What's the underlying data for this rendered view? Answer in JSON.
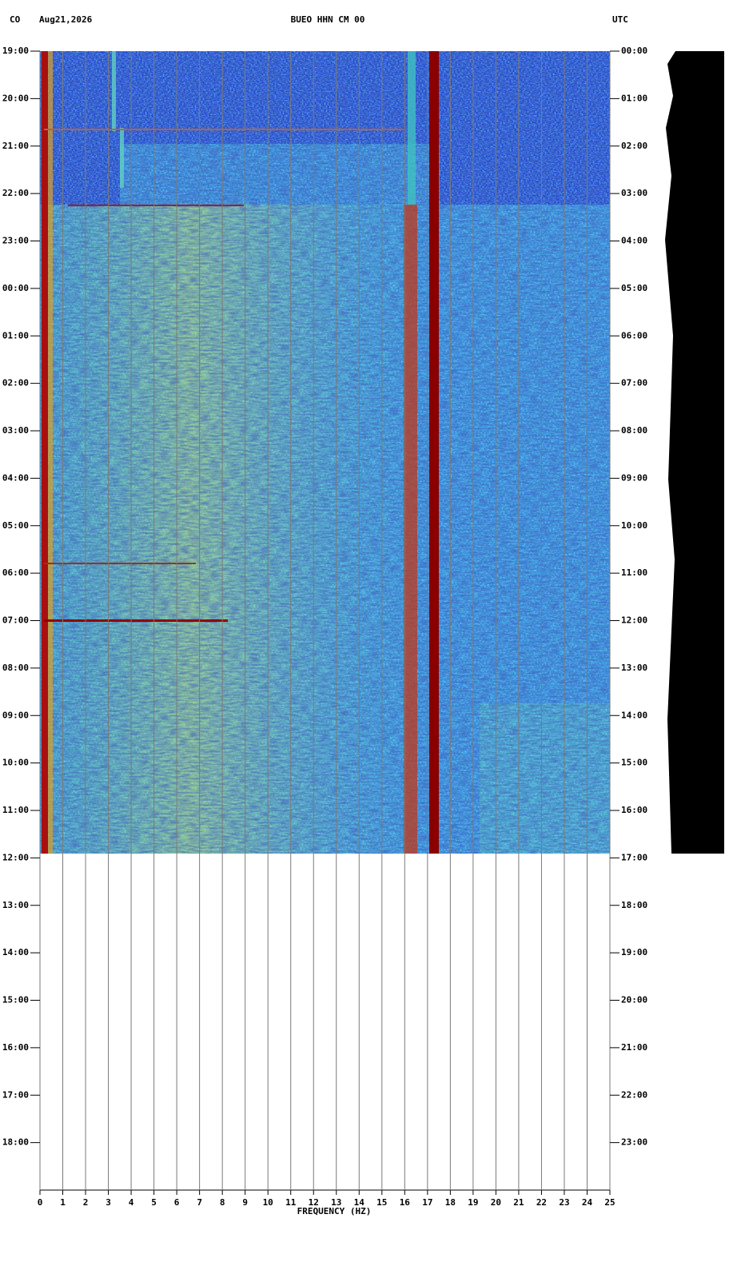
{
  "header": {
    "network": "CO",
    "date": "Aug21,2026",
    "station": "BUEO HHN CM 00",
    "timezone": "UTC"
  },
  "chart_data": {
    "type": "spectrogram",
    "xlabel": "FREQUENCY (HZ)",
    "xlim": [
      0,
      25
    ],
    "xticks": [
      0,
      1,
      2,
      3,
      4,
      5,
      6,
      7,
      8,
      9,
      10,
      11,
      12,
      13,
      14,
      15,
      16,
      17,
      18,
      19,
      20,
      21,
      22,
      23,
      24,
      25
    ],
    "ylim": [
      0,
      24
    ],
    "yticks": [
      {
        "value": 0,
        "label": "19:00"
      },
      {
        "value": 1,
        "label": "20:00"
      },
      {
        "value": 2,
        "label": "21:00"
      },
      {
        "value": 3,
        "label": "22:00"
      },
      {
        "value": 4,
        "label": "23:00"
      },
      {
        "value": 5,
        "label": "00:00"
      },
      {
        "value": 6,
        "label": "01:00"
      },
      {
        "value": 7,
        "label": "02:00"
      },
      {
        "value": 8,
        "label": "03:00"
      },
      {
        "value": 9,
        "label": "04:00"
      },
      {
        "value": 10,
        "label": "05:00"
      },
      {
        "value": 11,
        "label": "06:00"
      },
      {
        "value": 12,
        "label": "07:00"
      },
      {
        "value": 13,
        "label": "08:00"
      },
      {
        "value": 14,
        "label": "09:00"
      },
      {
        "value": 15,
        "label": "10:00"
      },
      {
        "value": 16,
        "label": "11:00"
      },
      {
        "value": 17,
        "label": "12:00"
      },
      {
        "value": 18,
        "label": "13:00"
      },
      {
        "value": 19,
        "label": "14:00"
      },
      {
        "value": 20,
        "label": "15:00"
      },
      {
        "value": 21,
        "label": "16:00"
      },
      {
        "value": 22,
        "label": "17:00"
      },
      {
        "value": 23,
        "label": "18:00"
      }
    ],
    "y2ticks": [
      {
        "value": 0,
        "label": "00:00"
      },
      {
        "value": 1,
        "label": "01:00"
      },
      {
        "value": 2,
        "label": "02:00"
      },
      {
        "value": 3,
        "label": "03:00"
      },
      {
        "value": 4,
        "label": "04:00"
      },
      {
        "value": 5,
        "label": "05:00"
      },
      {
        "value": 6,
        "label": "06:00"
      },
      {
        "value": 7,
        "label": "07:00"
      },
      {
        "value": 8,
        "label": "08:00"
      },
      {
        "value": 9,
        "label": "09:00"
      },
      {
        "value": 10,
        "label": "10:00"
      },
      {
        "value": 11,
        "label": "11:00"
      },
      {
        "value": 12,
        "label": "12:00"
      },
      {
        "value": 13,
        "label": "13:00"
      },
      {
        "value": 14,
        "label": "14:00"
      },
      {
        "value": 15,
        "label": "15:00"
      },
      {
        "value": 16,
        "label": "16:00"
      },
      {
        "value": 17,
        "label": "17:00"
      },
      {
        "value": 18,
        "label": "18:00"
      },
      {
        "value": 19,
        "label": "19:00"
      },
      {
        "value": 20,
        "label": "20:00"
      },
      {
        "value": 21,
        "label": "21:00"
      },
      {
        "value": 22,
        "label": "22:00"
      },
      {
        "value": 23,
        "label": "23:00"
      }
    ],
    "grid": true
  }
}
